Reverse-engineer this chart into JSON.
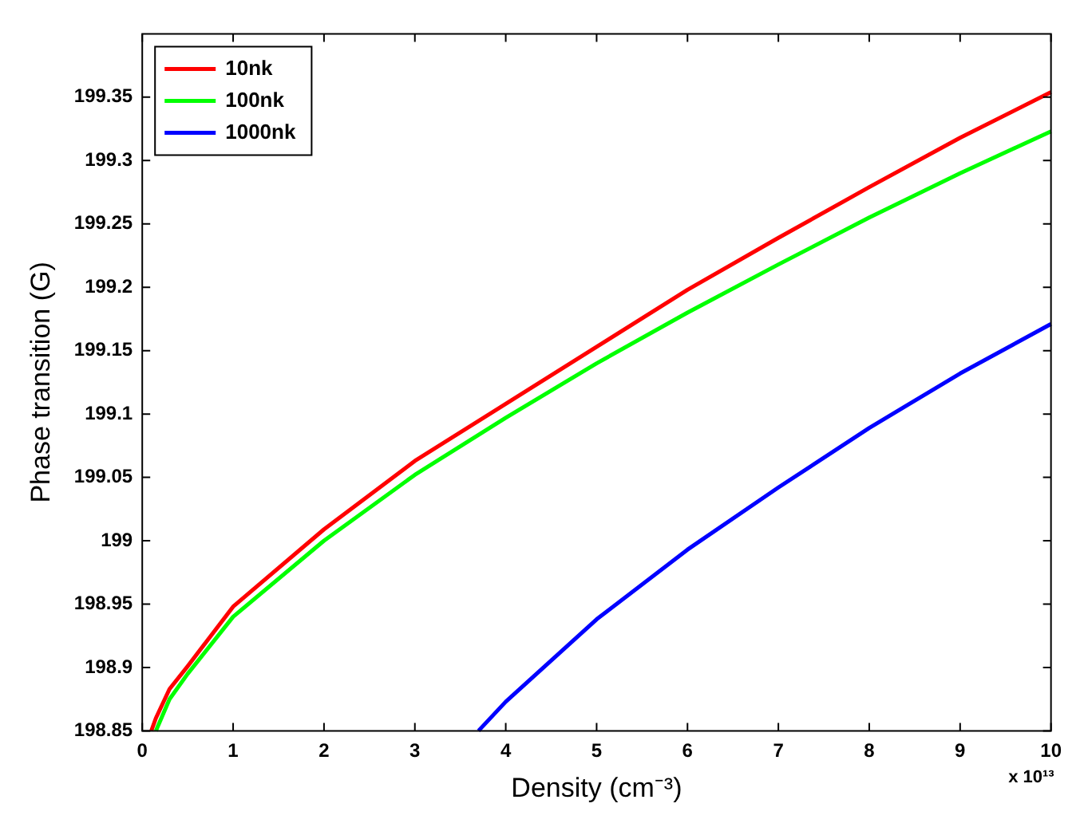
{
  "chart_data": {
    "type": "line",
    "xlabel": "Density (cm⁻³)",
    "ylabel": "Phase transition (G)",
    "annotations": [
      "x 10¹³"
    ],
    "xlim": [
      0,
      10
    ],
    "xticks": [
      0,
      1,
      2,
      3,
      4,
      5,
      6,
      7,
      8,
      9,
      10
    ],
    "ylim": [
      198.85,
      199.4
    ],
    "yticks": [
      198.85,
      198.9,
      198.95,
      199,
      199.05,
      199.1,
      199.15,
      199.2,
      199.25,
      199.3,
      199.35
    ],
    "grid": false,
    "legend": "top left",
    "marker": "none",
    "line_style": "solid",
    "series": [
      {
        "name": "10nk",
        "color": "#ff0000",
        "x": [
          0.1,
          0.15,
          0.3,
          0.5,
          1,
          2,
          3,
          4,
          5,
          6,
          7,
          8,
          9,
          10
        ],
        "values": [
          198.85,
          198.86,
          198.883,
          198.901,
          198.948,
          199.009,
          199.063,
          199.108,
          199.153,
          199.198,
          199.239,
          199.279,
          199.318,
          199.354
        ]
      },
      {
        "name": "100nk",
        "color": "#00ff00",
        "x": [
          0.15,
          0.3,
          0.5,
          1,
          2,
          3,
          4,
          5,
          6,
          7,
          8,
          9,
          10
        ],
        "values": [
          198.85,
          198.875,
          198.895,
          198.94,
          199.0,
          199.052,
          199.097,
          199.14,
          199.18,
          199.218,
          199.255,
          199.29,
          199.323
        ]
      },
      {
        "name": "1000nk",
        "color": "#0000ff",
        "x": [
          3.7,
          4,
          5,
          6,
          7,
          8,
          9,
          10
        ],
        "values": [
          198.85,
          198.873,
          198.938,
          198.993,
          199.042,
          199.089,
          199.132,
          199.171
        ]
      }
    ]
  }
}
